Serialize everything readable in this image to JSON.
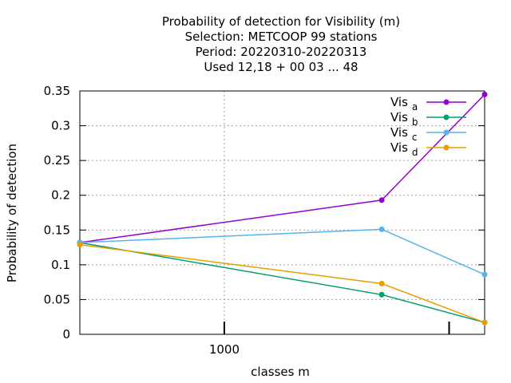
{
  "chart_data": {
    "type": "line",
    "title_lines": [
      "Probability of detection  for Visibility (m)",
      "Selection: METCOOP     99 stations",
      "Period: 20220310-20220313",
      "Used  12,18 + 00 03 ... 48"
    ],
    "xlabel": "classes m",
    "ylabel": "Probability of detection",
    "x_scale": "log",
    "xlim": [
      365,
      6150
    ],
    "ylim": [
      0,
      0.35
    ],
    "x_ticks": [
      {
        "value": 1000,
        "label": "1000"
      },
      {
        "value": 4800,
        "label": ""
      }
    ],
    "y_ticks": [
      {
        "value": 0,
        "label": "0"
      },
      {
        "value": 0.05,
        "label": "0.05"
      },
      {
        "value": 0.1,
        "label": "0.1"
      },
      {
        "value": 0.15,
        "label": "0.15"
      },
      {
        "value": 0.2,
        "label": "0.2"
      },
      {
        "value": 0.25,
        "label": "0.25"
      },
      {
        "value": 0.3,
        "label": "0.3"
      },
      {
        "value": 0.35,
        "label": "0.35"
      }
    ],
    "grid": true,
    "legend_position": "top-right",
    "x": [
      365,
      3000,
      6150
    ],
    "series": [
      {
        "name": "Vis",
        "subscript": "a",
        "color": "#9400d3",
        "values": [
          0.132,
          0.193,
          0.345
        ]
      },
      {
        "name": "Vis",
        "subscript": "b",
        "color": "#009e73",
        "values": [
          0.132,
          0.057,
          0.017
        ]
      },
      {
        "name": "Vis",
        "subscript": "c",
        "color": "#56b4e9",
        "values": [
          0.132,
          0.151,
          0.086
        ]
      },
      {
        "name": "Vis",
        "subscript": "d",
        "color": "#e69f00",
        "values": [
          0.129,
          0.073,
          0.017
        ]
      }
    ]
  }
}
